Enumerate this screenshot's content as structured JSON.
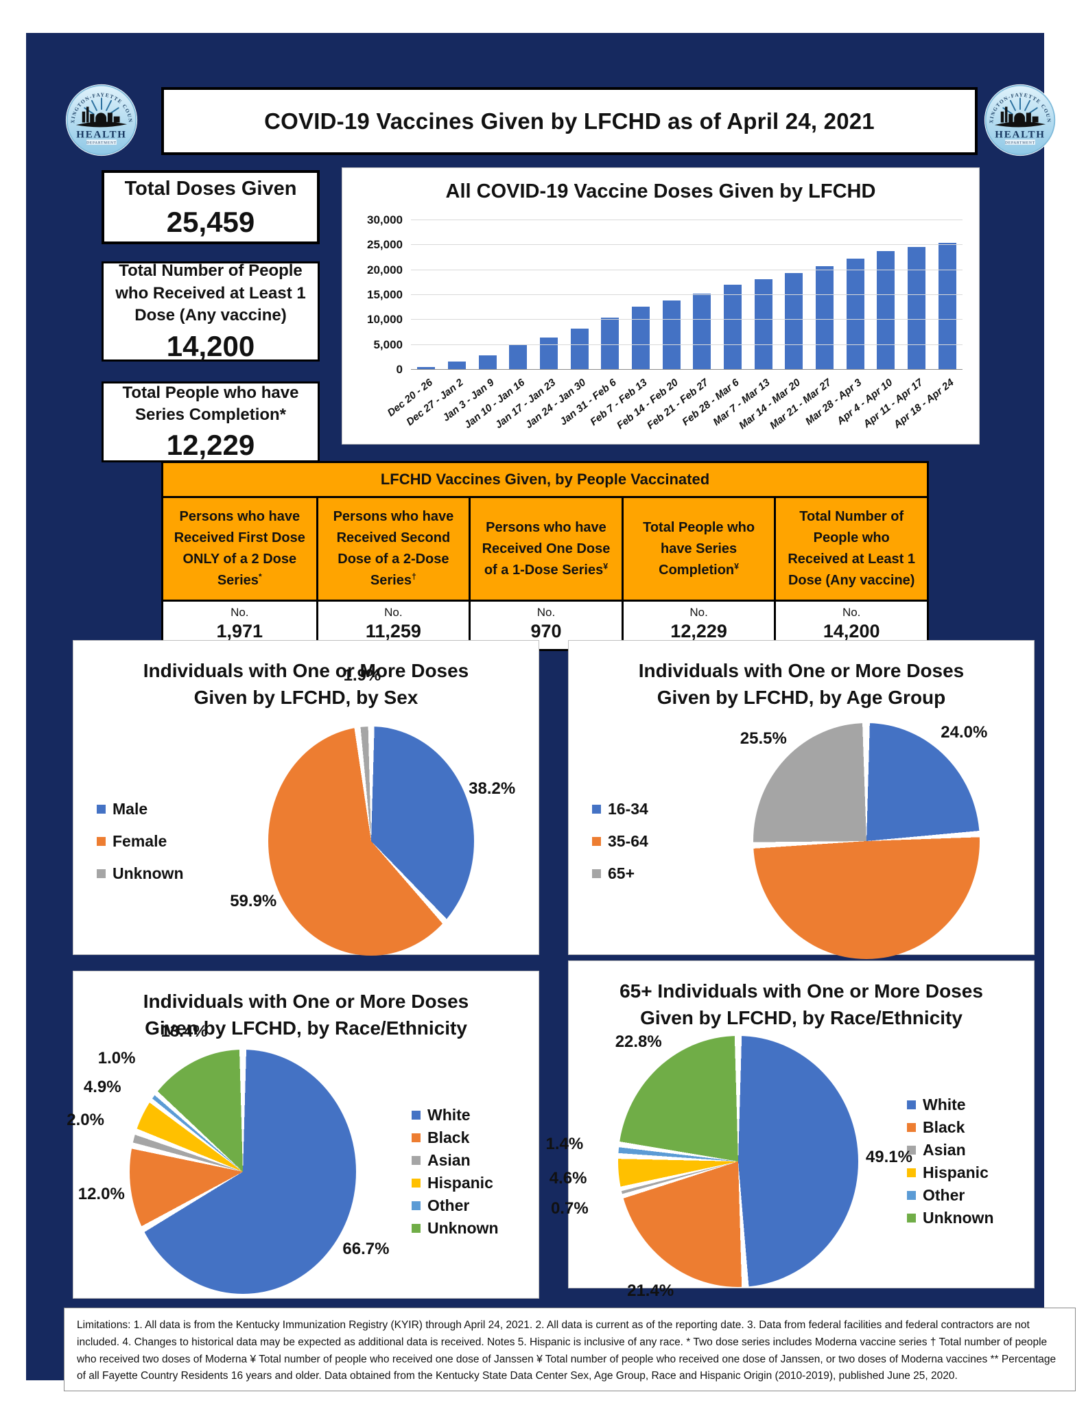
{
  "header": {
    "title": "COVID-19 Vaccines Given by LFCHD as of April 24, 2021",
    "logo": {
      "arc_text": "LEXINGTON-FAYETTE COUNTY",
      "name": "HEALTH",
      "sub": "DEPARTMENT"
    }
  },
  "stats": [
    {
      "label": "Total Doses Given",
      "value": "25,459"
    },
    {
      "label": "Total Number of People who Received at Least 1 Dose (Any vaccine)",
      "value": "14,200"
    },
    {
      "label": "Total People who have Series Completion*",
      "value": "12,229"
    }
  ],
  "table": {
    "title": "LFCHD Vaccines Given, by People Vaccinated",
    "unit_label": "No.",
    "columns": [
      {
        "header": "Persons who have Received First Dose ONLY of a 2 Dose Series",
        "sup": "*",
        "value": "1,971"
      },
      {
        "header": "Persons who have Received Second Dose of a 2-Dose Series",
        "sup": "†",
        "value": "11,259"
      },
      {
        "header": "Persons who have Received One Dose of a 1-Dose Series",
        "sup": "¥",
        "value": "970"
      },
      {
        "header": "Total People who have Series Completion",
        "sup": "¥",
        "value": "12,229"
      },
      {
        "header": "Total Number of People who Received at Least 1 Dose (Any vaccine)",
        "sup": "",
        "value": "14,200"
      }
    ]
  },
  "chart_data": [
    {
      "type": "bar",
      "title": "All COVID-19 Vaccine Doses Given by LFCHD",
      "categories": [
        "Dec 20 - 26",
        "Dec 27 - Jan 2",
        "Jan 3 - Jan 9",
        "Jan 10 - Jan 16",
        "Jan 17 - Jan 23",
        "Jan 24 - Jan 30",
        "Jan 31 - Feb 6",
        "Feb 7 - Feb 13",
        "Feb 14 - Feb 20",
        "Feb 21 - Feb 27",
        "Feb 28 - Mar 6",
        "Mar 7 - Mar 13",
        "Mar 14 - Mar 20",
        "Mar 21 - Mar 27",
        "Mar 28 - Apr 3",
        "Apr 4 - Apr 10",
        "Apr 11 - Apr 17",
        "Apr 18 - Apr 24"
      ],
      "values": [
        600,
        1600,
        2850,
        4950,
        6500,
        8300,
        10400,
        12600,
        13950,
        15250,
        17100,
        18100,
        19400,
        20750,
        22250,
        23850,
        24650,
        25459
      ],
      "xlabel": "",
      "ylabel": "",
      "ylim": [
        0,
        30000
      ],
      "ytick_labels": [
        "0",
        "5,000",
        "10,000",
        "15,000",
        "20,000",
        "25,000",
        "30,000"
      ],
      "grid": true,
      "bar_color": "#4472C4"
    },
    {
      "type": "pie",
      "title_lines": [
        "Individuals with One or More Doses",
        "Given by LFCHD, by Sex"
      ],
      "legend_position": "left",
      "pie_w": 300,
      "pie_h": 334,
      "slices": [
        {
          "label": "Male",
          "value": 38.2,
          "color": "#4472C4"
        },
        {
          "label": "Female",
          "value": 59.9,
          "color": "#ED7D31"
        },
        {
          "label": "Unknown",
          "value": 1.9,
          "color": "#A5A5A5"
        }
      ]
    },
    {
      "type": "pie",
      "title_lines": [
        "Individuals with One or More Doses",
        "Given by LFCHD, by Age Group"
      ],
      "legend_position": "left",
      "pie_w": 330,
      "pie_h": 344,
      "slices": [
        {
          "label": "16-34",
          "value": 24.0,
          "color": "#4472C4"
        },
        {
          "label": "35-64",
          "value": 50.4,
          "color": "#ED7D31"
        },
        {
          "label": "65+",
          "value": 25.5,
          "color": "#A5A5A5"
        }
      ]
    },
    {
      "type": "pie",
      "title_lines": [
        "Individuals with One or More Doses",
        "Given by LFCHD, by Race/Ethnicity"
      ],
      "legend_position": "right",
      "pie_w": 330,
      "pie_h": 356,
      "slices": [
        {
          "label": "White",
          "value": 66.7,
          "color": "#4472C4"
        },
        {
          "label": "Black",
          "value": 12.0,
          "color": "#ED7D31"
        },
        {
          "label": "Asian",
          "value": 2.0,
          "color": "#A5A5A5"
        },
        {
          "label": "Hispanic",
          "value": 4.9,
          "color": "#FFC000"
        },
        {
          "label": "Other",
          "value": 1.0,
          "color": "#5B9BD5"
        },
        {
          "label": "Unknown",
          "value": 13.4,
          "color": "#70AD47"
        }
      ]
    },
    {
      "type": "pie",
      "title_lines": [
        "65+ Individuals with One or More Doses",
        "Given by LFCHD, by Race/Ethnicity"
      ],
      "legend_position": "right",
      "pie_w": 350,
      "pie_h": 366,
      "slices": [
        {
          "label": "White",
          "value": 49.1,
          "color": "#4472C4"
        },
        {
          "label": "Black",
          "value": 21.4,
          "color": "#ED7D31"
        },
        {
          "label": "Asian",
          "value": 0.7,
          "color": "#A5A5A5"
        },
        {
          "label": "Hispanic",
          "value": 4.6,
          "color": "#FFC000"
        },
        {
          "label": "Other",
          "value": 1.4,
          "color": "#5B9BD5"
        },
        {
          "label": "Unknown",
          "value": 22.8,
          "color": "#70AD47"
        }
      ]
    }
  ],
  "footer": {
    "text": "Limitations: 1. All data is from the Kentucky Immunization Registry (KYIR) through April 24, 2021. 2. All data is current as of the reporting date. 3. Data from federal facilities and federal contractors are not included. 4. Changes to historical data may be expected as additional data is received. Notes 5. Hispanic is inclusive of any race. * Two dose series includes Moderna vaccine series † Total number of people who received two doses of Moderna ¥ Total number of people who received one dose of Janssen ¥ Total number of people who received one dose of Janssen, or two doses of Moderna vaccines ** Percentage of all Fayette Country Residents 16 years and older.  Data obtained from the Kentucky State Data Center Sex, Age Group, Race and Hispanic Origin (2010-2019), published June 25, 2020."
  }
}
